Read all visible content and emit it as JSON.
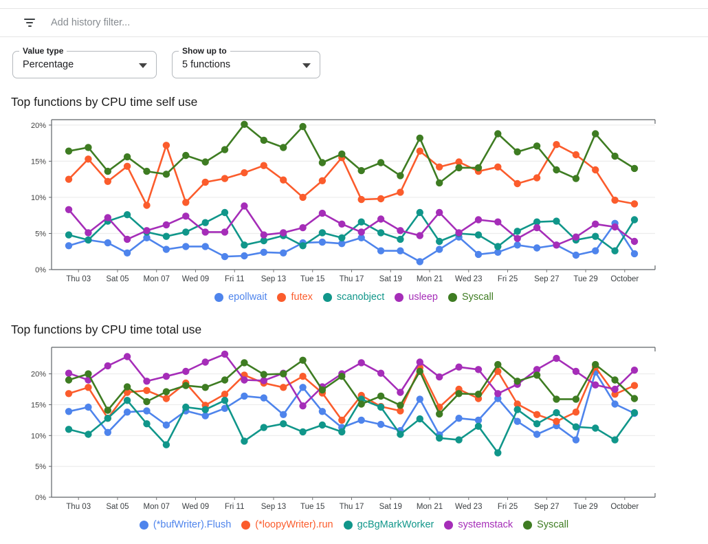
{
  "filter_bar": {
    "placeholder": "Add history filter...",
    "icon": "filter-list-icon"
  },
  "controls": [
    {
      "label": "Value type",
      "value": "Percentage",
      "icon": "dropdown-arrow-icon"
    },
    {
      "label": "Show up to",
      "value": "5 functions",
      "icon": "dropdown-arrow-icon"
    }
  ],
  "palette": {
    "blue": "#4e84ec",
    "orange": "#fb5c2c",
    "teal": "#10968a",
    "purple": "#a52db8",
    "green": "#3e7c22"
  },
  "chart_data": [
    {
      "type": "line",
      "title": "Top functions by CPU time self use",
      "xlabel": "",
      "ylabel": "",
      "ylim": [
        0,
        20.75
      ],
      "grid": true,
      "legend_position": "bottom",
      "y_ticks": [
        0,
        5,
        10,
        15,
        20
      ],
      "y_tick_labels": [
        "0%",
        "5%",
        "10%",
        "15%",
        "20%"
      ],
      "x_tick_labels": [
        "Thu 03",
        "Sat 05",
        "Mon 07",
        "Wed 09",
        "Fri 11",
        "Sep 13",
        "Tue 15",
        "Thu 17",
        "Sat 19",
        "Mon 21",
        "Wed 23",
        "Fri 25",
        "Sep 27",
        "Tue 29",
        "October"
      ],
      "series": [
        {
          "name": "epollwait",
          "color": "#4e84ec",
          "values": [
            3.3,
            4.1,
            3.7,
            2.3,
            4.4,
            2.8,
            3.2,
            3.2,
            1.8,
            1.9,
            2.4,
            2.3,
            3.7,
            3.8,
            3.6,
            4.4,
            2.6,
            2.6,
            1.1,
            2.8,
            4.5,
            2.1,
            2.4,
            3.4,
            3.0,
            3.4,
            2.0,
            2.6,
            6.4,
            2.2
          ]
        },
        {
          "name": "futex",
          "color": "#fb5c2c",
          "values": [
            12.5,
            15.3,
            12.2,
            14.3,
            8.9,
            17.2,
            9.3,
            12.1,
            12.6,
            13.4,
            14.4,
            12.4,
            10.0,
            12.3,
            15.5,
            9.7,
            9.8,
            10.7,
            16.4,
            14.2,
            14.9,
            13.6,
            14.2,
            11.9,
            12.7,
            17.3,
            15.9,
            13.8,
            9.6,
            9.1
          ]
        },
        {
          "name": "scanobject",
          "color": "#10968a",
          "values": [
            4.8,
            4.1,
            6.7,
            7.6,
            5.2,
            4.6,
            5.2,
            6.5,
            7.9,
            3.4,
            4.0,
            4.7,
            3.3,
            5.1,
            4.4,
            6.6,
            5.1,
            4.2,
            7.9,
            3.9,
            5.0,
            4.8,
            3.2,
            5.3,
            6.6,
            6.7,
            4.1,
            4.6,
            2.6,
            6.9
          ]
        },
        {
          "name": "usleep",
          "color": "#a52db8",
          "values": [
            8.3,
            5.1,
            7.2,
            4.2,
            5.4,
            6.2,
            7.4,
            5.2,
            5.2,
            8.8,
            4.8,
            5.1,
            5.8,
            7.8,
            6.3,
            5.2,
            7.0,
            5.4,
            4.7,
            7.9,
            5.1,
            6.9,
            6.6,
            4.3,
            5.8,
            3.4,
            4.5,
            6.3,
            5.9,
            3.9
          ]
        },
        {
          "name": "Syscall",
          "color": "#3e7c22",
          "values": [
            16.4,
            16.9,
            13.6,
            15.6,
            13.6,
            13.2,
            15.8,
            14.9,
            16.6,
            20.1,
            17.9,
            16.9,
            19.8,
            14.8,
            16.0,
            13.7,
            14.8,
            13.0,
            18.2,
            12.0,
            14.1,
            14.1,
            18.8,
            16.3,
            17.1,
            13.8,
            12.6,
            18.8,
            15.7,
            14.0
          ]
        }
      ]
    },
    {
      "type": "line",
      "title": "Top functions by CPU time total use",
      "xlabel": "",
      "ylabel": "",
      "ylim": [
        0,
        24.3
      ],
      "grid": true,
      "legend_position": "bottom",
      "y_ticks": [
        0,
        5,
        10,
        15,
        20
      ],
      "y_tick_labels": [
        "0%",
        "5%",
        "10%",
        "15%",
        "20%"
      ],
      "x_tick_labels": [
        "Thu 03",
        "Sat 05",
        "Mon 07",
        "Wed 09",
        "Fri 11",
        "Sep 13",
        "Tue 15",
        "Thu 17",
        "Sat 19",
        "Mon 21",
        "Wed 23",
        "Fri 25",
        "Sep 27",
        "Tue 29",
        "October"
      ],
      "series": [
        {
          "name": "(*bufWriter).Flush",
          "color": "#4e84ec",
          "values": [
            13.9,
            14.6,
            10.5,
            13.8,
            14.0,
            11.7,
            14.0,
            13.2,
            14.4,
            16.4,
            16.1,
            13.4,
            17.8,
            13.9,
            11.3,
            12.5,
            11.8,
            10.8,
            15.9,
            10.1,
            12.8,
            12.5,
            16.0,
            12.3,
            10.2,
            11.6,
            9.3,
            20.3,
            15.1,
            13.6
          ]
        },
        {
          "name": "(*loopyWriter).run",
          "color": "#fb5c2c",
          "values": [
            16.8,
            17.8,
            12.8,
            17.0,
            17.3,
            16.0,
            18.5,
            14.9,
            16.7,
            19.8,
            18.5,
            17.8,
            19.6,
            16.9,
            12.5,
            16.5,
            14.7,
            14.0,
            21.0,
            14.6,
            17.5,
            16.0,
            20.4,
            15.1,
            13.4,
            12.3,
            13.8,
            21.1,
            16.7,
            18.1
          ]
        },
        {
          "name": "gcBgMarkWorker",
          "color": "#10968a",
          "values": [
            11.0,
            10.2,
            12.8,
            15.7,
            11.9,
            8.5,
            14.6,
            14.2,
            15.7,
            9.1,
            11.3,
            11.9,
            10.6,
            11.7,
            10.6,
            15.9,
            14.6,
            10.2,
            12.7,
            9.6,
            9.3,
            11.5,
            7.2,
            14.2,
            11.9,
            13.7,
            11.4,
            11.2,
            9.3,
            13.7
          ]
        },
        {
          "name": "systemstack",
          "color": "#a52db8",
          "values": [
            20.1,
            19.0,
            21.3,
            22.8,
            18.8,
            19.6,
            20.4,
            21.9,
            23.2,
            19.0,
            18.9,
            20.1,
            14.8,
            17.9,
            20.0,
            21.8,
            20.1,
            17.0,
            21.9,
            19.5,
            21.1,
            20.7,
            16.8,
            18.3,
            20.7,
            22.5,
            20.4,
            18.2,
            17.5,
            20.6
          ]
        },
        {
          "name": "Syscall",
          "color": "#3e7c22",
          "values": [
            19.0,
            20.0,
            14.1,
            17.9,
            15.5,
            17.1,
            18.1,
            17.8,
            19.0,
            21.8,
            19.9,
            20.0,
            22.2,
            17.4,
            19.6,
            15.1,
            16.4,
            14.9,
            20.4,
            13.5,
            16.8,
            16.7,
            21.5,
            18.8,
            19.8,
            15.9,
            15.9,
            21.5,
            19.0,
            16.0
          ]
        }
      ]
    }
  ]
}
